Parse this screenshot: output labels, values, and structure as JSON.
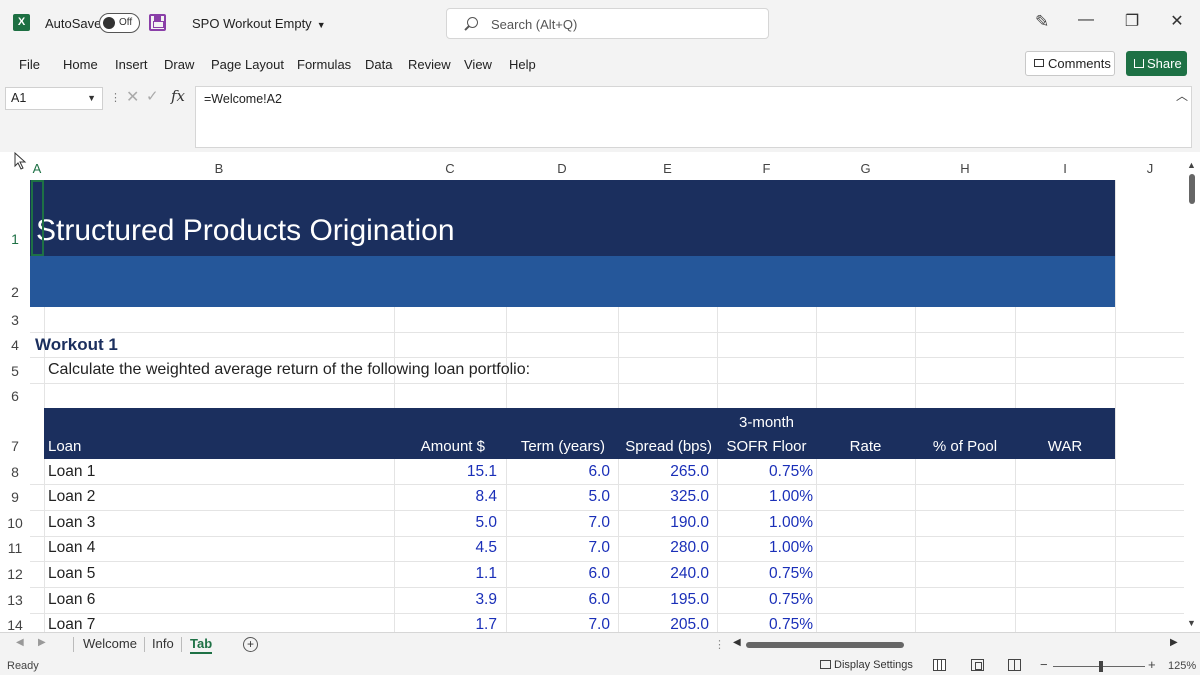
{
  "titlebar": {
    "autosave_label": "AutoSave",
    "autosave_state": "Off",
    "filename": "SPO Workout Empty",
    "search_placeholder": "Search (Alt+Q)"
  },
  "ribbon": {
    "tabs": [
      "File",
      "Home",
      "Insert",
      "Draw",
      "Page Layout",
      "Formulas",
      "Data",
      "Review",
      "View",
      "Help"
    ],
    "comments_label": "Comments",
    "share_label": "Share"
  },
  "formula_bar": {
    "name_box": "A1",
    "fx": "fx",
    "formula": "=Welcome!A2"
  },
  "columns": [
    "A",
    "B",
    "C",
    "D",
    "E",
    "F",
    "G",
    "H",
    "I",
    "J"
  ],
  "rows": [
    "1",
    "2",
    "3",
    "4",
    "5",
    "6",
    "7",
    "8",
    "9",
    "10",
    "11",
    "12",
    "13",
    "14"
  ],
  "sheet": {
    "title": "Structured Products Origination",
    "workout_title": "Workout 1",
    "instruction": "Calculate the weighted average return of the following loan portfolio:",
    "headers": {
      "loan": "Loan",
      "amount": "Amount $",
      "term": "Term (years)",
      "spread": "Spread (bps)",
      "floor_line1": "3-month",
      "floor_line2": "SOFR Floor",
      "rate": "Rate",
      "pct_pool": "% of Pool",
      "war": "WAR"
    },
    "loans": [
      {
        "name": "Loan 1",
        "amount": "15.1",
        "term": "6.0",
        "spread": "265.0",
        "floor": "0.75%"
      },
      {
        "name": "Loan 2",
        "amount": "8.4",
        "term": "5.0",
        "spread": "325.0",
        "floor": "1.00%"
      },
      {
        "name": "Loan 3",
        "amount": "5.0",
        "term": "7.0",
        "spread": "190.0",
        "floor": "1.00%"
      },
      {
        "name": "Loan 4",
        "amount": "4.5",
        "term": "7.0",
        "spread": "280.0",
        "floor": "1.00%"
      },
      {
        "name": "Loan 5",
        "amount": "1.1",
        "term": "6.0",
        "spread": "240.0",
        "floor": "0.75%"
      },
      {
        "name": "Loan 6",
        "amount": "3.9",
        "term": "6.0",
        "spread": "195.0",
        "floor": "0.75%"
      },
      {
        "name": "Loan 7",
        "amount": "1.7",
        "term": "7.0",
        "spread": "205.0",
        "floor": "0.75%"
      }
    ]
  },
  "sheet_tabs": [
    {
      "label": "Welcome",
      "active": false
    },
    {
      "label": "Info",
      "active": false
    },
    {
      "label": "Tab",
      "active": true
    }
  ],
  "status": {
    "ready": "Ready",
    "display_settings": "Display Settings",
    "zoom": "125%"
  },
  "colors": {
    "title_band": "#1b2f5e",
    "sub_band": "#25579a",
    "input_blue": "#1a2fb8",
    "excel_green": "#1e7145"
  }
}
